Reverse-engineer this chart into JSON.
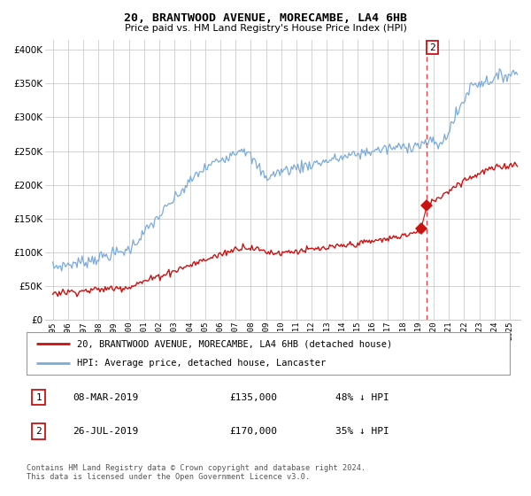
{
  "title": "20, BRANTWOOD AVENUE, MORECAMBE, LA4 6HB",
  "subtitle": "Price paid vs. HM Land Registry's House Price Index (HPI)",
  "ytick_vals": [
    0,
    50000,
    100000,
    150000,
    200000,
    250000,
    300000,
    350000,
    400000
  ],
  "ylim": [
    0,
    415000
  ],
  "xlim_start": 1994.5,
  "xlim_end": 2025.7,
  "hpi_color": "#7aabdb",
  "price_color": "#cc1111",
  "vline_color": "#dd4444",
  "marker1_date": 2019.18,
  "marker1_price": 135000,
  "marker2_date": 2019.57,
  "marker2_price": 170000,
  "legend_line1": "20, BRANTWOOD AVENUE, MORECAMBE, LA4 6HB (detached house)",
  "legend_line2": "HPI: Average price, detached house, Lancaster",
  "table_row1": [
    "1",
    "08-MAR-2019",
    "£135,000",
    "48% ↓ HPI"
  ],
  "table_row2": [
    "2",
    "26-JUL-2019",
    "£170,000",
    "35% ↓ HPI"
  ],
  "footnote": "Contains HM Land Registry data © Crown copyright and database right 2024.\nThis data is licensed under the Open Government Licence v3.0.",
  "background_color": "#ffffff",
  "grid_color": "#cccccc"
}
